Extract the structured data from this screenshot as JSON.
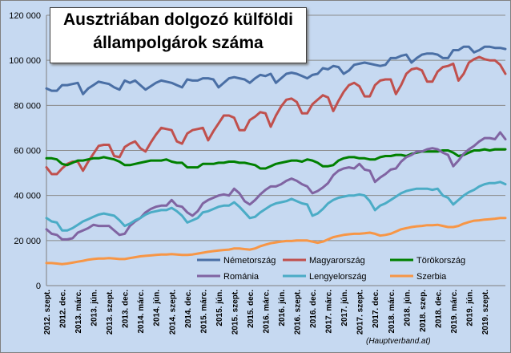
{
  "chart_data": {
    "type": "line",
    "title_line1": "Ausztriában dolgozó külföldi",
    "title_line2": "állampolgárok száma",
    "source": "(Hauptverband.at)",
    "ylim": [
      0,
      120000
    ],
    "yticks": [
      "0",
      "20 000",
      "40 000",
      "60 000",
      "80 000",
      "100 000",
      "120 000"
    ],
    "grid": true,
    "legend_position": "center",
    "x_tick_labels": [
      "2012. szept.",
      "2012. dec.",
      "2013. márc.",
      "2013. jún.",
      "2013. szept.",
      "2013. dec.",
      "2014. márc.",
      "2014. jún.",
      "2014. szept.",
      "2014. dec.",
      "2015. márc.",
      "2015. jún.",
      "2015. szept.",
      "2015. dec.",
      "2016. márc.",
      "2016. jún.",
      "2016. szept.",
      "2016. dec.",
      "2017. márc.",
      "2017. jún.",
      "2017. szept.",
      "2017. dec.",
      "2018. márc.",
      "2018. jún.",
      "2018. szep.",
      "2018. dec.",
      "2019. márc.",
      "2019. jún.",
      "2019. szept."
    ],
    "series": [
      {
        "name": "Németország",
        "color": "#4a6fa5",
        "values": [
          87500,
          86500,
          86500,
          89000,
          89000,
          89500,
          90000,
          85000,
          87500,
          89000,
          90500,
          90000,
          89500,
          88000,
          87000,
          91000,
          90000,
          91000,
          89000,
          87000,
          88500,
          90000,
          91000,
          90500,
          90000,
          89000,
          88000,
          91500,
          91000,
          91000,
          92000,
          92000,
          91500,
          88000,
          90000,
          92000,
          92500,
          92000,
          91500,
          90000,
          92000,
          93500,
          93000,
          94000,
          90000,
          92000,
          94000,
          94500,
          94000,
          93000,
          92000,
          93500,
          94000,
          96500,
          96000,
          97500,
          97000,
          94000,
          95500,
          98000,
          98500,
          99000,
          98500,
          98000,
          97500,
          98000,
          101000,
          101000,
          102000,
          102500,
          99000,
          101000,
          102500,
          103000,
          103000,
          102500,
          101000,
          101000,
          104500,
          104500,
          106000,
          106000,
          103500,
          104500,
          106000,
          106000,
          105500,
          105500,
          105000
        ]
      },
      {
        "name": "Magyarország",
        "color": "#c0504d",
        "values": [
          52500,
          49500,
          49500,
          52000,
          54000,
          55000,
          55000,
          51000,
          55000,
          58500,
          62000,
          62500,
          62500,
          57500,
          57000,
          61500,
          63000,
          64000,
          61000,
          59500,
          63500,
          67000,
          70000,
          69500,
          69000,
          64000,
          63000,
          67500,
          69000,
          69500,
          70000,
          64500,
          68500,
          72000,
          75500,
          75500,
          74500,
          69000,
          69000,
          73500,
          75000,
          77000,
          76500,
          70500,
          75500,
          79500,
          82500,
          83000,
          81500,
          76500,
          76500,
          80500,
          82500,
          84500,
          83500,
          77500,
          82000,
          86000,
          89000,
          90000,
          88500,
          84000,
          84000,
          89000,
          91000,
          91500,
          91500,
          85000,
          89000,
          94000,
          96000,
          96500,
          95500,
          90500,
          90500,
          95000,
          97000,
          97500,
          98500,
          91000,
          94000,
          99000,
          100500,
          101500,
          100500,
          100000,
          100000,
          98000,
          94000
        ]
      },
      {
        "name": "Törökország",
        "color": "#008000",
        "values": [
          56500,
          56500,
          56000,
          54000,
          53500,
          54500,
          55500,
          55500,
          56000,
          56500,
          56500,
          57000,
          56500,
          56000,
          55000,
          53500,
          53500,
          54000,
          54500,
          55000,
          55500,
          55500,
          55500,
          56000,
          55000,
          54500,
          54500,
          52500,
          52500,
          52500,
          54000,
          54000,
          54000,
          54500,
          54500,
          55000,
          55000,
          54500,
          54500,
          54000,
          53500,
          52000,
          52000,
          53000,
          54000,
          54500,
          55000,
          55500,
          55500,
          55000,
          56000,
          55500,
          54500,
          53000,
          53000,
          53500,
          55500,
          56500,
          57000,
          57000,
          56500,
          56500,
          56000,
          56000,
          57000,
          57500,
          57500,
          58000,
          58000,
          57500,
          58500,
          59000,
          59500,
          59500,
          59500,
          59500,
          60000,
          60000,
          59000,
          57500,
          58000,
          59000,
          60000,
          60000,
          60500,
          60000,
          60500,
          60500,
          60500
        ]
      },
      {
        "name": "Románia",
        "color": "#8064a2",
        "values": [
          25000,
          23000,
          22500,
          20500,
          20500,
          21000,
          23500,
          24500,
          25500,
          27000,
          26500,
          26500,
          26500,
          24500,
          22500,
          23000,
          26500,
          28500,
          30000,
          32500,
          34000,
          35000,
          35500,
          35500,
          38000,
          35500,
          35000,
          32500,
          31000,
          33000,
          36500,
          38000,
          39000,
          40000,
          40500,
          40000,
          43000,
          41000,
          37500,
          36000,
          38000,
          40500,
          42500,
          44000,
          44000,
          45000,
          46500,
          47500,
          46500,
          45000,
          44000,
          41000,
          42000,
          43500,
          45500,
          49000,
          51000,
          52000,
          52500,
          52000,
          54000,
          51500,
          51000,
          46000,
          48000,
          49500,
          51500,
          52000,
          55000,
          57000,
          58000,
          59500,
          59500,
          60500,
          61000,
          60500,
          59000,
          58000,
          53000,
          55500,
          58500,
          60500,
          62000,
          64000,
          65500,
          65500,
          65000,
          68000,
          65000
        ]
      },
      {
        "name": "Lengyelország",
        "color": "#4bacc6",
        "values": [
          30000,
          28500,
          28000,
          24500,
          24500,
          25500,
          27000,
          28500,
          29500,
          30500,
          31500,
          32000,
          31500,
          31000,
          29000,
          26500,
          27500,
          29000,
          30000,
          31500,
          32500,
          33000,
          33500,
          33500,
          34500,
          33000,
          31000,
          28000,
          29000,
          30000,
          32500,
          33000,
          34000,
          35000,
          35500,
          35500,
          37000,
          35000,
          32500,
          30000,
          30500,
          32500,
          34000,
          35500,
          36500,
          37000,
          37500,
          38500,
          37500,
          36500,
          36000,
          31000,
          32000,
          34000,
          36500,
          38000,
          39000,
          39500,
          40000,
          40000,
          40500,
          40000,
          37500,
          33500,
          35500,
          36500,
          38000,
          39500,
          41000,
          42000,
          42500,
          43000,
          43000,
          43000,
          42500,
          43000,
          40000,
          39000,
          36000,
          38000,
          40000,
          41500,
          42500,
          44000,
          45000,
          45500,
          45500,
          46000,
          45000
        ]
      },
      {
        "name": "Szerbia",
        "color": "#f79646",
        "values": [
          10000,
          10000,
          9800,
          9500,
          9800,
          10200,
          10600,
          11000,
          11500,
          11800,
          12000,
          12000,
          12200,
          12000,
          11800,
          11800,
          12200,
          12600,
          13000,
          13200,
          13400,
          13600,
          13800,
          13800,
          14000,
          13800,
          13600,
          13600,
          13800,
          14200,
          14600,
          15000,
          15300,
          15600,
          15800,
          16000,
          16500,
          16500,
          16200,
          16000,
          16500,
          17500,
          18200,
          18800,
          19200,
          19500,
          19800,
          19800,
          20000,
          20000,
          20000,
          19500,
          19000,
          19500,
          20500,
          21500,
          22000,
          22500,
          22800,
          23000,
          23000,
          23200,
          23500,
          23000,
          22200,
          22500,
          23000,
          24000,
          25000,
          25500,
          26000,
          26300,
          26500,
          26800,
          26800,
          27000,
          26500,
          26000,
          26000,
          26500,
          27500,
          28200,
          28800,
          29000,
          29300,
          29500,
          29700,
          30000,
          30000
        ]
      }
    ]
  }
}
